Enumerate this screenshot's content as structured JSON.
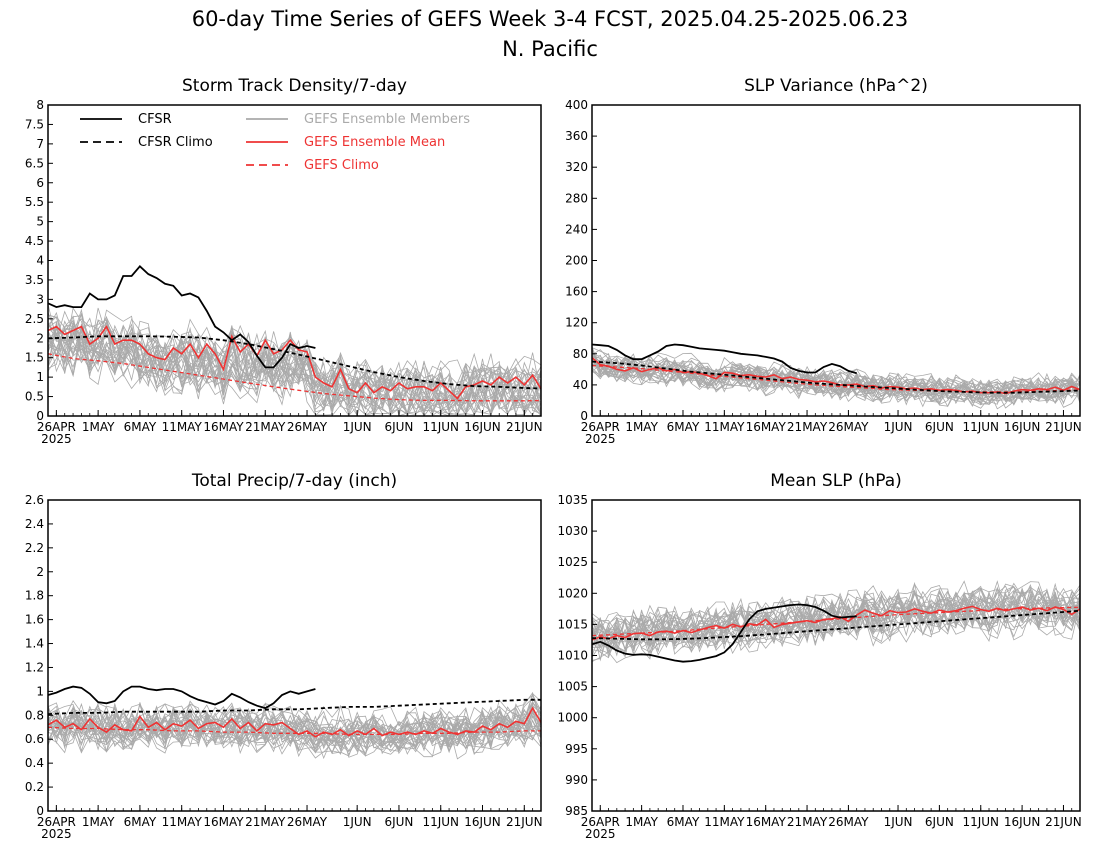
{
  "figure": {
    "title_line1": "60-day Time Series of GEFS Week 3-4 FCST, 2025.04.25-2025.06.23",
    "title_line2": "N. Pacific"
  },
  "colors": {
    "cfsr": "#000000",
    "members": "#aaaaaa",
    "ens_mean": "#ee3333",
    "frame": "#000000"
  },
  "legend": {
    "cfsr": "CFSR",
    "cfsr_climo": "CFSR Climo",
    "members": "GEFS Ensemble Members",
    "ens_mean": "GEFS Ensemble Mean",
    "gefs_climo": "GEFS Climo"
  },
  "x_axis": {
    "ticks": [
      {
        "day": 1,
        "label": "26APR"
      },
      {
        "day": 6,
        "label": "1MAY"
      },
      {
        "day": 11,
        "label": "6MAY"
      },
      {
        "day": 16,
        "label": "11MAY"
      },
      {
        "day": 21,
        "label": "16MAY"
      },
      {
        "day": 26,
        "label": "21MAY"
      },
      {
        "day": 31,
        "label": "26MAY"
      },
      {
        "day": 37,
        "label": "1JUN"
      },
      {
        "day": 42,
        "label": "6JUN"
      },
      {
        "day": 47,
        "label": "11JUN"
      },
      {
        "day": 52,
        "label": "16JUN"
      },
      {
        "day": 57,
        "label": "21JUN"
      }
    ],
    "year_label": "2025"
  },
  "chart_data": [
    {
      "type": "line",
      "title": "Storm Track Density/7-day",
      "x_range": [
        "2025-04-25",
        "2025-06-23"
      ],
      "ylim": [
        0,
        8
      ],
      "yticks": [
        "0",
        "0.5",
        "1",
        "1.5",
        "2",
        "2.5",
        "3",
        "3.5",
        "4",
        "4.5",
        "5",
        "5.5",
        "6",
        "6.5",
        "7",
        "7.5",
        "8"
      ],
      "has_legend": true,
      "member_count": 30,
      "member_spread": 0.6,
      "series": [
        {
          "name": "CFSR",
          "style": "solid-black",
          "x_start": 0,
          "values": [
            2.9,
            2.8,
            2.85,
            2.8,
            2.8,
            3.15,
            3.0,
            3.0,
            3.1,
            3.6,
            3.6,
            3.85,
            3.65,
            3.55,
            3.4,
            3.35,
            3.1,
            3.15,
            3.05,
            2.7,
            2.3,
            2.15,
            1.95,
            2.1,
            1.9,
            1.55,
            1.25,
            1.25,
            1.5,
            1.85,
            1.75,
            1.8,
            1.75
          ]
        },
        {
          "name": "CFSR Climo",
          "style": "dashed-black",
          "x_start": 0,
          "values": [
            2.0,
            2.02,
            2.05,
            2.05,
            2.05,
            2.04,
            2.02,
            1.95,
            1.85,
            1.72,
            1.58,
            1.43,
            1.28,
            1.13,
            1.0,
            0.9,
            0.82,
            0.77,
            0.75,
            0.72,
            0.7
          ],
          "x_step": 3
        },
        {
          "name": "GEFS Ensemble Mean",
          "style": "solid-red",
          "x_start": 0,
          "values": [
            2.2,
            2.3,
            2.1,
            2.2,
            2.3,
            1.85,
            2.0,
            2.3,
            1.85,
            1.95,
            1.95,
            1.85,
            1.6,
            1.5,
            1.45,
            1.75,
            1.6,
            1.85,
            1.5,
            1.85,
            1.6,
            1.2,
            2.05,
            1.65,
            1.85,
            1.55,
            1.95,
            1.6,
            1.7,
            1.95,
            1.7,
            1.65,
            1.0,
            0.85,
            0.75,
            1.2,
            0.7,
            0.6,
            0.85,
            0.6,
            0.75,
            0.65,
            0.85,
            0.7,
            0.75,
            0.75,
            0.65,
            0.85,
            0.65,
            0.45,
            0.75,
            0.8,
            0.9,
            0.8,
            1.0,
            0.85,
            1.0,
            0.8,
            1.05,
            0.7
          ]
        },
        {
          "name": "GEFS Climo",
          "style": "dashed-red",
          "x_start": 0,
          "values": [
            1.6,
            1.48,
            1.42,
            1.35,
            1.25,
            1.15,
            1.05,
            0.95,
            0.85,
            0.75,
            0.66,
            0.58,
            0.52,
            0.46,
            0.42,
            0.4,
            0.4,
            0.39,
            0.39,
            0.39,
            0.4
          ],
          "x_step": 3
        }
      ]
    },
    {
      "type": "line",
      "title": "SLP Variance (hPa^2)",
      "x_range": [
        "2025-04-25",
        "2025-06-23"
      ],
      "ylim": [
        0,
        400
      ],
      "yticks": [
        "0",
        "40",
        "80",
        "120",
        "160",
        "200",
        "240",
        "280",
        "320",
        "360",
        "400"
      ],
      "has_legend": false,
      "member_count": 30,
      "member_spread": 14,
      "series": [
        {
          "name": "CFSR",
          "style": "solid-black",
          "x_start": 0,
          "values": [
            92,
            91,
            90,
            85,
            78,
            73,
            73,
            78,
            83,
            90,
            92,
            91,
            89,
            87,
            86,
            85,
            84,
            82,
            80,
            79,
            78,
            76,
            74,
            70,
            62,
            58,
            56,
            56,
            63,
            67,
            64,
            58,
            55
          ]
        },
        {
          "name": "CFSR Climo",
          "style": "dashed-black",
          "x_start": 0,
          "values": [
            70,
            68,
            65,
            61,
            57,
            54,
            51,
            48,
            45,
            42,
            40,
            38,
            36,
            34,
            32,
            31,
            30,
            30,
            31,
            32,
            33
          ],
          "x_step": 3
        },
        {
          "name": "GEFS Ensemble Mean",
          "style": "solid-red",
          "x_start": 0,
          "values": [
            75,
            66,
            64,
            60,
            58,
            62,
            57,
            60,
            62,
            58,
            60,
            56,
            57,
            55,
            52,
            48,
            56,
            55,
            52,
            53,
            51,
            50,
            53,
            48,
            50,
            47,
            46,
            44,
            45,
            43,
            40,
            40,
            41,
            38,
            39,
            36,
            38,
            37,
            35,
            36,
            34,
            35,
            33,
            34,
            33,
            31,
            32,
            30,
            30,
            31,
            29,
            32,
            34,
            33,
            35,
            34,
            37,
            33,
            38,
            34
          ]
        },
        {
          "name": "GEFS Climo",
          "style": "dashed-red",
          "x_start": 0,
          "values": [
            65,
            63,
            61,
            58,
            55,
            52,
            49,
            46,
            43,
            40,
            38,
            36,
            34,
            33,
            32,
            31,
            31,
            31,
            32,
            33,
            34
          ],
          "x_step": 3
        }
      ]
    },
    {
      "type": "line",
      "title": "Total Precip/7-day (inch)",
      "x_range": [
        "2025-04-25",
        "2025-06-23"
      ],
      "ylim": [
        0,
        2.6
      ],
      "yticks": [
        "0",
        "0.2",
        "0.4",
        "0.6",
        "0.8",
        "1",
        "1.2",
        "1.4",
        "1.6",
        "1.8",
        "2",
        "2.2",
        "2.4",
        "2.6"
      ],
      "has_legend": false,
      "member_count": 30,
      "member_spread": 0.14,
      "series": [
        {
          "name": "CFSR",
          "style": "solid-black",
          "x_start": 0,
          "values": [
            0.97,
            0.99,
            1.02,
            1.04,
            1.03,
            0.98,
            0.91,
            0.9,
            0.92,
            1.0,
            1.04,
            1.04,
            1.02,
            1.01,
            1.02,
            1.02,
            1.0,
            0.96,
            0.93,
            0.91,
            0.89,
            0.92,
            0.98,
            0.95,
            0.91,
            0.88,
            0.86,
            0.9,
            0.97,
            1.0,
            0.98,
            1.0,
            1.02
          ]
        },
        {
          "name": "CFSR Climo",
          "style": "dashed-black",
          "x_start": 0,
          "values": [
            0.81,
            0.82,
            0.82,
            0.83,
            0.83,
            0.83,
            0.83,
            0.84,
            0.84,
            0.85,
            0.85,
            0.86,
            0.87,
            0.87,
            0.88,
            0.89,
            0.9,
            0.91,
            0.92,
            0.93,
            0.93
          ],
          "x_step": 3
        },
        {
          "name": "GEFS Ensemble Mean",
          "style": "solid-red",
          "x_start": 0,
          "values": [
            0.72,
            0.76,
            0.7,
            0.73,
            0.68,
            0.77,
            0.7,
            0.66,
            0.72,
            0.68,
            0.67,
            0.79,
            0.7,
            0.74,
            0.68,
            0.73,
            0.71,
            0.76,
            0.69,
            0.73,
            0.74,
            0.7,
            0.77,
            0.69,
            0.74,
            0.67,
            0.73,
            0.72,
            0.74,
            0.69,
            0.64,
            0.67,
            0.62,
            0.66,
            0.64,
            0.68,
            0.63,
            0.67,
            0.64,
            0.69,
            0.63,
            0.66,
            0.64,
            0.66,
            0.64,
            0.67,
            0.65,
            0.69,
            0.66,
            0.64,
            0.67,
            0.66,
            0.71,
            0.68,
            0.73,
            0.7,
            0.75,
            0.73,
            0.86,
            0.74
          ]
        },
        {
          "name": "GEFS Climo",
          "style": "dashed-red",
          "x_start": 0,
          "values": [
            0.7,
            0.69,
            0.69,
            0.68,
            0.68,
            0.67,
            0.67,
            0.66,
            0.66,
            0.65,
            0.65,
            0.65,
            0.64,
            0.64,
            0.64,
            0.65,
            0.65,
            0.66,
            0.66,
            0.67,
            0.67
          ],
          "x_step": 3
        }
      ]
    },
    {
      "type": "line",
      "title": "Mean SLP (hPa)",
      "x_range": [
        "2025-04-25",
        "2025-06-23"
      ],
      "ylim": [
        985,
        1035
      ],
      "yticks": [
        "985",
        "990",
        "995",
        "1000",
        "1005",
        "1010",
        "1015",
        "1020",
        "1025",
        "1030",
        "1035"
      ],
      "has_legend": false,
      "member_count": 30,
      "member_spread": 3.0,
      "series": [
        {
          "name": "CFSR",
          "style": "solid-black",
          "x_start": 0,
          "values": [
            1011.8,
            1012.2,
            1011.6,
            1010.8,
            1010.3,
            1010.1,
            1010.2,
            1010.1,
            1009.8,
            1009.5,
            1009.2,
            1009.0,
            1009.1,
            1009.3,
            1009.6,
            1009.9,
            1010.5,
            1011.8,
            1013.8,
            1015.8,
            1017.1,
            1017.5,
            1017.7,
            1017.9,
            1018.1,
            1018.2,
            1018.1,
            1017.8,
            1017.2,
            1016.4,
            1016.1,
            1016.2,
            1016.3
          ]
        },
        {
          "name": "CFSR Climo",
          "style": "dashed-black",
          "x_start": 0,
          "values": [
            1012.8,
            1012.7,
            1012.6,
            1012.6,
            1012.7,
            1012.9,
            1013.1,
            1013.4,
            1013.7,
            1014.0,
            1014.3,
            1014.6,
            1014.9,
            1015.2,
            1015.5,
            1015.8,
            1016.1,
            1016.4,
            1016.7,
            1017.0,
            1017.3
          ],
          "x_step": 3
        },
        {
          "name": "GEFS Ensemble Mean",
          "style": "solid-red",
          "x_start": 0,
          "values": [
            1012.5,
            1013.0,
            1012.7,
            1013.2,
            1012.9,
            1013.5,
            1013.6,
            1013.2,
            1013.8,
            1013.9,
            1013.6,
            1014.0,
            1013.7,
            1014.1,
            1014.5,
            1014.8,
            1014.4,
            1015.0,
            1014.6,
            1015.1,
            1014.9,
            1015.8,
            1014.5,
            1015.0,
            1015.2,
            1015.4,
            1015.6,
            1015.3,
            1015.8,
            1015.9,
            1016.2,
            1015.5,
            1016.5,
            1017.3,
            1016.8,
            1016.4,
            1017.2,
            1016.9,
            1017.0,
            1017.5,
            1017.1,
            1016.8,
            1017.3,
            1017.0,
            1017.2,
            1017.6,
            1017.9,
            1017.4,
            1017.1,
            1017.6,
            1017.2,
            1017.5,
            1017.8,
            1017.3,
            1017.6,
            1017.2,
            1017.8,
            1017.4,
            1016.6,
            1017.5
          ]
        },
        {
          "name": "GEFS Climo",
          "style": "dashed-red",
          "x_start": 0,
          "values": [
            1013.2,
            1013.4,
            1013.6,
            1013.8,
            1014.1,
            1014.4,
            1014.7,
            1015.0,
            1015.3,
            1015.6,
            1015.9,
            1016.2,
            1016.5,
            1016.7,
            1016.9,
            1017.1,
            1017.3,
            1017.5,
            1017.6,
            1017.7,
            1017.8
          ],
          "x_step": 3
        }
      ]
    }
  ]
}
